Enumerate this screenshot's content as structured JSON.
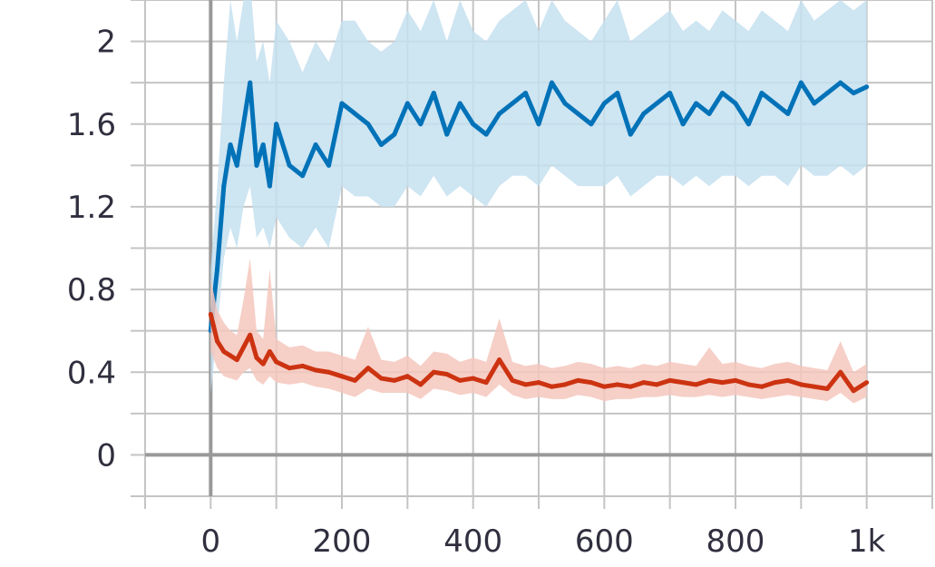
{
  "chart_data": {
    "type": "line",
    "title": "",
    "xlabel": "",
    "ylabel": "",
    "xlim": [
      -100,
      1100
    ],
    "ylim": [
      -0.2,
      2.2
    ],
    "grid": true,
    "x_ticks": [
      {
        "value": 0,
        "label": "0"
      },
      {
        "value": 200,
        "label": "200"
      },
      {
        "value": 400,
        "label": "400"
      },
      {
        "value": 600,
        "label": "600"
      },
      {
        "value": 800,
        "label": "800"
      },
      {
        "value": 1000,
        "label": "1k"
      }
    ],
    "y_ticks": [
      {
        "value": 0,
        "label": "0"
      },
      {
        "value": 0.4,
        "label": "0.4"
      },
      {
        "value": 0.8,
        "label": "0.8"
      },
      {
        "value": 1.2,
        "label": "1.2"
      },
      {
        "value": 1.6,
        "label": "1.6"
      },
      {
        "value": 2,
        "label": "2"
      }
    ],
    "colors": {
      "blue_series": "#0072b8",
      "blue_band": "#c6e0f0",
      "red_series": "#cc3311",
      "red_band": "#f4c7bd",
      "grid": "#c4c4c4",
      "axis": "#999999"
    },
    "series": [
      {
        "color_key": "blue",
        "x": [
          0,
          10,
          20,
          30,
          40,
          50,
          60,
          70,
          80,
          90,
          100,
          120,
          140,
          160,
          180,
          200,
          220,
          240,
          260,
          280,
          300,
          320,
          340,
          360,
          380,
          400,
          420,
          440,
          460,
          480,
          500,
          520,
          540,
          560,
          580,
          600,
          620,
          640,
          660,
          680,
          700,
          720,
          740,
          760,
          780,
          800,
          820,
          840,
          860,
          880,
          900,
          920,
          940,
          960,
          980,
          1000
        ],
        "values": [
          0.6,
          0.9,
          1.3,
          1.5,
          1.4,
          1.6,
          1.8,
          1.4,
          1.5,
          1.3,
          1.6,
          1.4,
          1.35,
          1.5,
          1.4,
          1.7,
          1.65,
          1.6,
          1.5,
          1.55,
          1.7,
          1.6,
          1.75,
          1.55,
          1.7,
          1.6,
          1.55,
          1.65,
          1.7,
          1.75,
          1.6,
          1.8,
          1.7,
          1.65,
          1.6,
          1.7,
          1.75,
          1.55,
          1.65,
          1.7,
          1.75,
          1.6,
          1.7,
          1.65,
          1.75,
          1.7,
          1.6,
          1.75,
          1.7,
          1.65,
          1.8,
          1.7,
          1.75,
          1.8,
          1.75,
          1.78
        ],
        "lower": [
          0.3,
          0.6,
          0.95,
          1.1,
          1.0,
          1.2,
          1.3,
          1.05,
          1.1,
          1.0,
          1.15,
          1.05,
          1.0,
          1.1,
          1.0,
          1.3,
          1.25,
          1.25,
          1.2,
          1.2,
          1.3,
          1.25,
          1.35,
          1.25,
          1.3,
          1.25,
          1.2,
          1.3,
          1.35,
          1.35,
          1.3,
          1.4,
          1.35,
          1.3,
          1.3,
          1.3,
          1.35,
          1.25,
          1.3,
          1.35,
          1.35,
          1.3,
          1.35,
          1.3,
          1.35,
          1.35,
          1.3,
          1.35,
          1.35,
          1.3,
          1.4,
          1.35,
          1.35,
          1.4,
          1.35,
          1.4
        ],
        "upper": [
          0.9,
          1.3,
          1.8,
          2.2,
          2.0,
          2.2,
          2.3,
          1.9,
          2.0,
          1.8,
          2.1,
          2.0,
          1.85,
          2.0,
          1.9,
          2.1,
          2.1,
          2.0,
          1.95,
          2.0,
          2.15,
          2.05,
          2.2,
          2.0,
          2.2,
          2.05,
          2.0,
          2.1,
          2.15,
          2.2,
          2.05,
          2.2,
          2.1,
          2.05,
          2.0,
          2.1,
          2.2,
          2.0,
          2.05,
          2.1,
          2.15,
          2.05,
          2.1,
          2.05,
          2.15,
          2.1,
          2.05,
          2.15,
          2.1,
          2.05,
          2.2,
          2.1,
          2.15,
          2.2,
          2.15,
          2.2
        ]
      },
      {
        "color_key": "red",
        "x": [
          0,
          10,
          20,
          30,
          40,
          50,
          60,
          70,
          80,
          90,
          100,
          120,
          140,
          160,
          180,
          200,
          220,
          240,
          260,
          280,
          300,
          320,
          340,
          360,
          380,
          400,
          420,
          440,
          460,
          480,
          500,
          520,
          540,
          560,
          580,
          600,
          620,
          640,
          660,
          680,
          700,
          720,
          740,
          760,
          780,
          800,
          820,
          840,
          860,
          880,
          900,
          920,
          940,
          960,
          980,
          1000
        ],
        "values": [
          0.68,
          0.55,
          0.5,
          0.48,
          0.46,
          0.52,
          0.58,
          0.47,
          0.44,
          0.5,
          0.45,
          0.42,
          0.43,
          0.41,
          0.4,
          0.38,
          0.36,
          0.42,
          0.37,
          0.36,
          0.38,
          0.34,
          0.4,
          0.39,
          0.36,
          0.37,
          0.35,
          0.46,
          0.36,
          0.34,
          0.35,
          0.33,
          0.34,
          0.36,
          0.35,
          0.33,
          0.34,
          0.33,
          0.35,
          0.34,
          0.36,
          0.35,
          0.34,
          0.36,
          0.35,
          0.36,
          0.34,
          0.33,
          0.35,
          0.36,
          0.34,
          0.33,
          0.32,
          0.4,
          0.31,
          0.35
        ],
        "lower": [
          0.5,
          0.42,
          0.38,
          0.37,
          0.36,
          0.4,
          0.42,
          0.36,
          0.34,
          0.38,
          0.35,
          0.34,
          0.35,
          0.33,
          0.32,
          0.3,
          0.28,
          0.32,
          0.3,
          0.3,
          0.3,
          0.27,
          0.32,
          0.31,
          0.29,
          0.3,
          0.28,
          0.34,
          0.29,
          0.27,
          0.28,
          0.27,
          0.27,
          0.29,
          0.28,
          0.26,
          0.27,
          0.27,
          0.28,
          0.28,
          0.29,
          0.28,
          0.28,
          0.29,
          0.28,
          0.29,
          0.28,
          0.27,
          0.28,
          0.29,
          0.28,
          0.27,
          0.26,
          0.3,
          0.25,
          0.28
        ],
        "upper": [
          0.85,
          0.7,
          0.64,
          0.6,
          0.58,
          0.75,
          0.95,
          0.6,
          0.56,
          0.9,
          0.56,
          0.52,
          0.53,
          0.5,
          0.5,
          0.48,
          0.46,
          0.62,
          0.46,
          0.45,
          0.48,
          0.43,
          0.5,
          0.49,
          0.45,
          0.47,
          0.45,
          0.66,
          0.45,
          0.43,
          0.44,
          0.42,
          0.43,
          0.45,
          0.44,
          0.42,
          0.43,
          0.42,
          0.44,
          0.43,
          0.45,
          0.44,
          0.43,
          0.52,
          0.44,
          0.45,
          0.43,
          0.42,
          0.44,
          0.45,
          0.43,
          0.42,
          0.41,
          0.55,
          0.4,
          0.44
        ]
      }
    ]
  }
}
